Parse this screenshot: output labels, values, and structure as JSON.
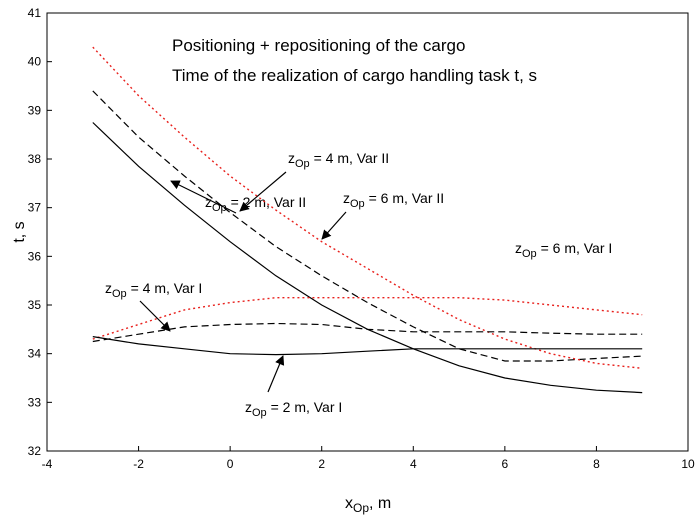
{
  "chart_data": {
    "type": "line",
    "title_lines": [
      "Positioning + repositioning of the cargo",
      "Time of the realization of cargo handling task  t, s"
    ],
    "xlabel": [
      "x",
      "Op",
      ", m"
    ],
    "ylabel": "t, s",
    "xlim": [
      -4,
      10
    ],
    "xticks": [
      -4,
      -2,
      0,
      2,
      4,
      6,
      8,
      10
    ],
    "ylim": [
      32,
      41
    ],
    "yticks": [
      32,
      33,
      34,
      35,
      36,
      37,
      38,
      39,
      40,
      41
    ],
    "x": [
      -3,
      -2,
      -1,
      0,
      1,
      2,
      3,
      4,
      5,
      6,
      7,
      8,
      9
    ],
    "series": [
      {
        "name": [
          "z",
          "Op",
          " = 2 m, Var II"
        ],
        "color": "#000000",
        "linestyle": "solid",
        "values": [
          38.75,
          37.85,
          37.05,
          36.3,
          35.6,
          35.0,
          34.5,
          34.1,
          33.75,
          33.5,
          33.35,
          33.25,
          33.2
        ]
      },
      {
        "name": [
          "z",
          "Op",
          " = 4 m, Var II"
        ],
        "color": "#000000",
        "linestyle": "dashed",
        "values": [
          39.4,
          38.45,
          37.65,
          36.9,
          36.2,
          35.6,
          35.05,
          34.55,
          34.1,
          33.85,
          33.85,
          33.9,
          33.95
        ]
      },
      {
        "name": [
          "z",
          "Op",
          " = 6 m, Var II"
        ],
        "color": "#e8201c",
        "linestyle": "dotted",
        "values": [
          40.3,
          39.3,
          38.45,
          37.65,
          36.95,
          36.3,
          35.75,
          35.2,
          34.7,
          34.3,
          34.0,
          33.8,
          33.7
        ]
      },
      {
        "name": [
          "z",
          "Op",
          " = 6 m, Var I"
        ],
        "color": "#e8201c",
        "linestyle": "dotted",
        "values": [
          34.3,
          34.6,
          34.9,
          35.05,
          35.15,
          35.15,
          35.15,
          35.15,
          35.15,
          35.1,
          35.0,
          34.9,
          34.8
        ]
      },
      {
        "name": [
          "z",
          "Op",
          " = 4 m, Var I"
        ],
        "color": "#000000",
        "linestyle": "dashed",
        "values": [
          34.25,
          34.4,
          34.55,
          34.6,
          34.62,
          34.6,
          34.5,
          34.45,
          34.45,
          34.45,
          34.42,
          34.4,
          34.4
        ]
      },
      {
        "name": [
          "z",
          "Op",
          " = 2 m, Var I"
        ],
        "color": "#000000",
        "linestyle": "solid",
        "values": [
          34.35,
          34.2,
          34.1,
          34.0,
          33.98,
          34.0,
          34.05,
          34.1,
          34.1,
          34.1,
          34.1,
          34.1,
          34.1
        ]
      }
    ]
  }
}
